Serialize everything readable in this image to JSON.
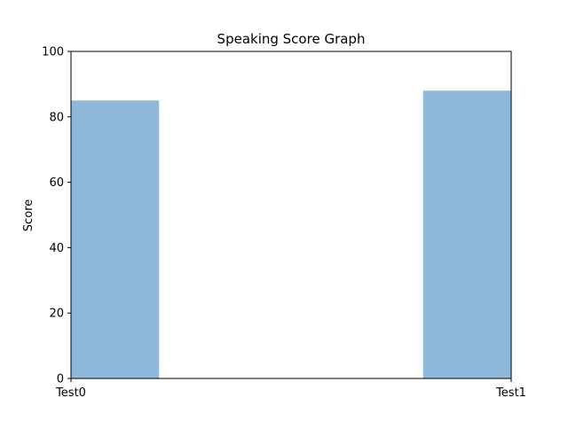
{
  "chart_data": {
    "type": "bar",
    "title": "Speaking Score Graph",
    "xlabel": "",
    "ylabel": "Score",
    "categories": [
      "Test0",
      "Test1"
    ],
    "values": [
      85,
      88
    ],
    "ylim": [
      0,
      100
    ],
    "yticks": [
      0,
      20,
      40,
      60,
      80,
      100
    ],
    "grid": false,
    "bar_color": "#8fb9da"
  }
}
